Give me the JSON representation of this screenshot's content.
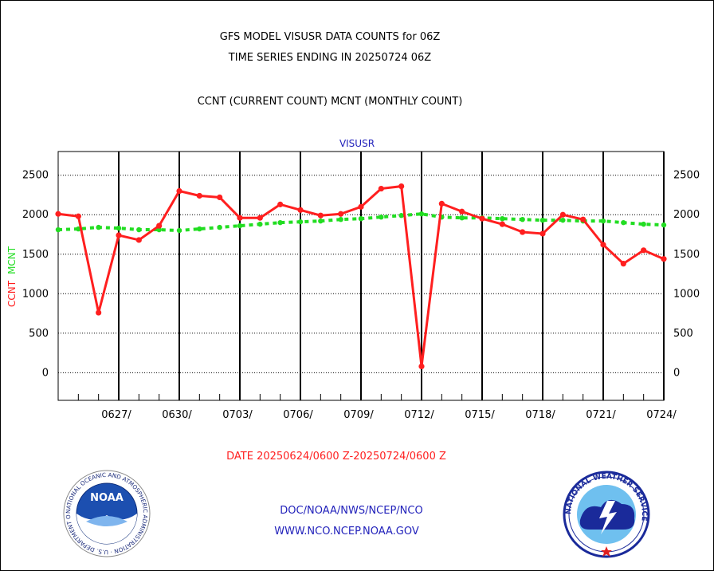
{
  "header": {
    "line1": "GFS MODEL VISUSR DATA COUNTS for 06Z",
    "line2": "TIME SERIES ENDING IN 20250724 06Z",
    "line3": "CCNT (CURRENT COUNT) MCNT (MONTHLY COUNT)"
  },
  "chart_data": {
    "type": "line",
    "title": "VISUSR",
    "ylabel_parts": [
      "CCNT",
      "MCNT"
    ],
    "xlabel": "DATE 20250624/0600 Z-20250724/0600 Z",
    "ylim": [
      -350,
      2800
    ],
    "yticks": [
      0,
      500,
      1000,
      1500,
      2000,
      2500
    ],
    "xlim": [
      0,
      30
    ],
    "xticks": [
      {
        "x": 3,
        "label": "0627/"
      },
      {
        "x": 6,
        "label": "0630/"
      },
      {
        "x": 9,
        "label": "0703/"
      },
      {
        "x": 12,
        "label": "0706/"
      },
      {
        "x": 15,
        "label": "0709/"
      },
      {
        "x": 18,
        "label": "0712/"
      },
      {
        "x": 21,
        "label": "0715/"
      },
      {
        "x": 24,
        "label": "0718/"
      },
      {
        "x": 27,
        "label": "0721/"
      },
      {
        "x": 30,
        "label": "0724/"
      }
    ],
    "grid": true,
    "colors": {
      "ccnt": "#ff1f1f",
      "mcnt": "#22dd22",
      "axis": "#000000",
      "title": "#2222bb"
    },
    "series": [
      {
        "name": "CCNT",
        "values": [
          2010,
          1980,
          760,
          1740,
          1680,
          1860,
          2300,
          2240,
          2220,
          1960,
          1960,
          2130,
          2060,
          1990,
          2010,
          2100,
          2330,
          2360,
          80,
          2140,
          2040,
          1950,
          1880,
          1780,
          1760,
          2000,
          1940,
          1620,
          1380,
          1550,
          1440
        ]
      },
      {
        "name": "MCNT",
        "values": [
          1810,
          1820,
          1840,
          1830,
          1810,
          1810,
          1800,
          1820,
          1840,
          1860,
          1880,
          1900,
          1910,
          1920,
          1940,
          1950,
          1970,
          1990,
          2010,
          1970,
          1960,
          1960,
          1950,
          1940,
          1930,
          1930,
          1920,
          1920,
          1900,
          1880,
          1870
        ]
      }
    ]
  },
  "footer": {
    "link1": "DOC/NOAA/NWS/NCEP/NCO",
    "link2": "WWW.NCO.NCEP.NOAA.GOV",
    "noaa_text": "NOAA",
    "noaa_ring": "NATIONAL OCEANIC AND ATMOSPHERIC ADMINISTRATION · U.S. DEPARTMENT OF COMMERCE",
    "nws_ring": "NATIONAL WEATHER SERVICE"
  }
}
